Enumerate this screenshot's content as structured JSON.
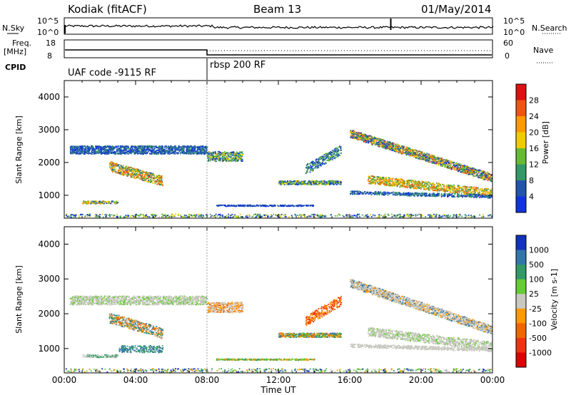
{
  "header": {
    "station": "Kodiak (fitACF)",
    "beam": "Beam 13",
    "date": "01/May/2014"
  },
  "top_panels": {
    "nsky_label": "N.Sky",
    "nsearch_label": "N.Search",
    "nsky_ticks": [
      "10^5",
      "10^0"
    ],
    "nsearch_ticks": [
      "10^5",
      "10^0"
    ],
    "freq_label_1": "Freq.",
    "freq_label_2": "[MHz]",
    "freq_ticks": [
      "18",
      "8"
    ],
    "nave_label": "Nave",
    "nave_ticks": [
      "60",
      "0"
    ],
    "cpid_label": "CPID",
    "cpid_1": "UAF code -9115 RF",
    "cpid_2": "rbsp 200 RF"
  },
  "chart_data": [
    {
      "type": "heatmap",
      "name": "power",
      "ylabel": "Slant Range [km]",
      "y_ticks": [
        "1000",
        "2000",
        "3000",
        "4000"
      ],
      "ylim": [
        300,
        4500
      ],
      "xlim_hours": [
        0,
        24
      ],
      "colorbar_label": "Power [dB]",
      "colorbar_ticks": [
        "28",
        "24",
        "20",
        "16",
        "12",
        "8",
        "4"
      ],
      "colorbar_colors": [
        "#dd1111",
        "#ee5511",
        "#ff9900",
        "#eecc00",
        "#66bb33",
        "#339966",
        "#2255aa",
        "#1133dd"
      ]
    },
    {
      "type": "heatmap",
      "name": "velocity",
      "ylabel": "Slant Range [km]",
      "y_ticks": [
        "1000",
        "2000",
        "3000",
        "4000"
      ],
      "ylim": [
        300,
        4500
      ],
      "xlim_hours": [
        0,
        24
      ],
      "colorbar_label": "Velocity [m s-1]",
      "colorbar_ticks": [
        "1000",
        "500",
        "100",
        "25",
        "-25",
        "-100",
        "-500",
        "-1000"
      ],
      "colorbar_colors": [
        "#1133bb",
        "#3377aa",
        "#339966",
        "#66cc33",
        "#c8c8c0",
        "#ff9900",
        "#ee6600",
        "#ee3311",
        "#dd0000"
      ]
    }
  ],
  "x_axis": {
    "ticks": [
      "00:00",
      "04:00",
      "08:00",
      "12:00",
      "16:00",
      "20:00",
      "00:00"
    ],
    "label": "Time UT"
  },
  "colors": {
    "axis": "#000000",
    "ground_scatter": "#c8c8c0"
  }
}
